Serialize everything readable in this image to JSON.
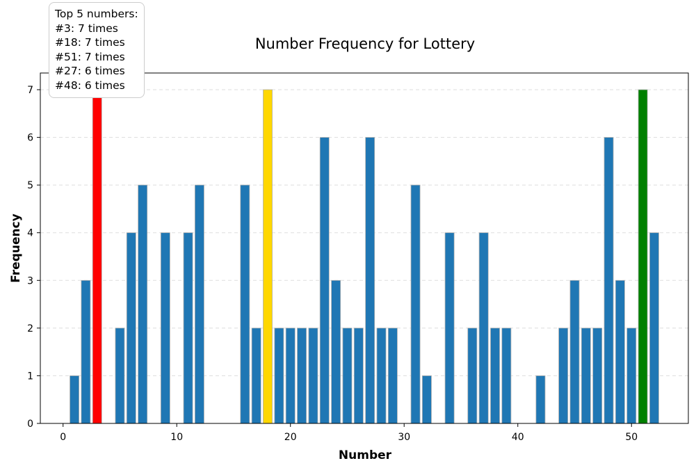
{
  "chart_data": {
    "type": "bar",
    "title": "Number Frequency for Lottery",
    "xlabel": "Number",
    "ylabel": "Frequency",
    "xlim": [
      -2,
      55
    ],
    "ylim": [
      0,
      7.35
    ],
    "xticks": [
      0,
      10,
      20,
      30,
      40,
      50
    ],
    "yticks": [
      0,
      1,
      2,
      3,
      4,
      5,
      6,
      7
    ],
    "grid": "y-dashed",
    "default_color": "#1f77b4",
    "bars": [
      {
        "x": 1,
        "value": 1
      },
      {
        "x": 2,
        "value": 3
      },
      {
        "x": 3,
        "value": 7,
        "color": "#ff0000"
      },
      {
        "x": 5,
        "value": 2
      },
      {
        "x": 6,
        "value": 4
      },
      {
        "x": 7,
        "value": 5
      },
      {
        "x": 9,
        "value": 4
      },
      {
        "x": 11,
        "value": 4
      },
      {
        "x": 12,
        "value": 5
      },
      {
        "x": 16,
        "value": 5
      },
      {
        "x": 17,
        "value": 2
      },
      {
        "x": 18,
        "value": 7,
        "color": "#ffd700"
      },
      {
        "x": 19,
        "value": 2
      },
      {
        "x": 20,
        "value": 2
      },
      {
        "x": 21,
        "value": 2
      },
      {
        "x": 22,
        "value": 2
      },
      {
        "x": 23,
        "value": 6
      },
      {
        "x": 24,
        "value": 3
      },
      {
        "x": 25,
        "value": 2
      },
      {
        "x": 26,
        "value": 2
      },
      {
        "x": 27,
        "value": 6
      },
      {
        "x": 28,
        "value": 2
      },
      {
        "x": 29,
        "value": 2
      },
      {
        "x": 31,
        "value": 5
      },
      {
        "x": 32,
        "value": 1
      },
      {
        "x": 34,
        "value": 4
      },
      {
        "x": 36,
        "value": 2
      },
      {
        "x": 37,
        "value": 4
      },
      {
        "x": 38,
        "value": 2
      },
      {
        "x": 39,
        "value": 2
      },
      {
        "x": 42,
        "value": 1
      },
      {
        "x": 44,
        "value": 2
      },
      {
        "x": 45,
        "value": 3
      },
      {
        "x": 46,
        "value": 2
      },
      {
        "x": 47,
        "value": 2
      },
      {
        "x": 48,
        "value": 6
      },
      {
        "x": 49,
        "value": 3
      },
      {
        "x": 50,
        "value": 2
      },
      {
        "x": 51,
        "value": 7,
        "color": "#008000"
      },
      {
        "x": 52,
        "value": 4
      }
    ],
    "annotation": {
      "lines": [
        "Top 5 numbers:",
        "#3: 7 times",
        "#18: 7 times",
        "#51: 7 times",
        "#27: 6 times",
        "#48: 6 times"
      ]
    }
  }
}
